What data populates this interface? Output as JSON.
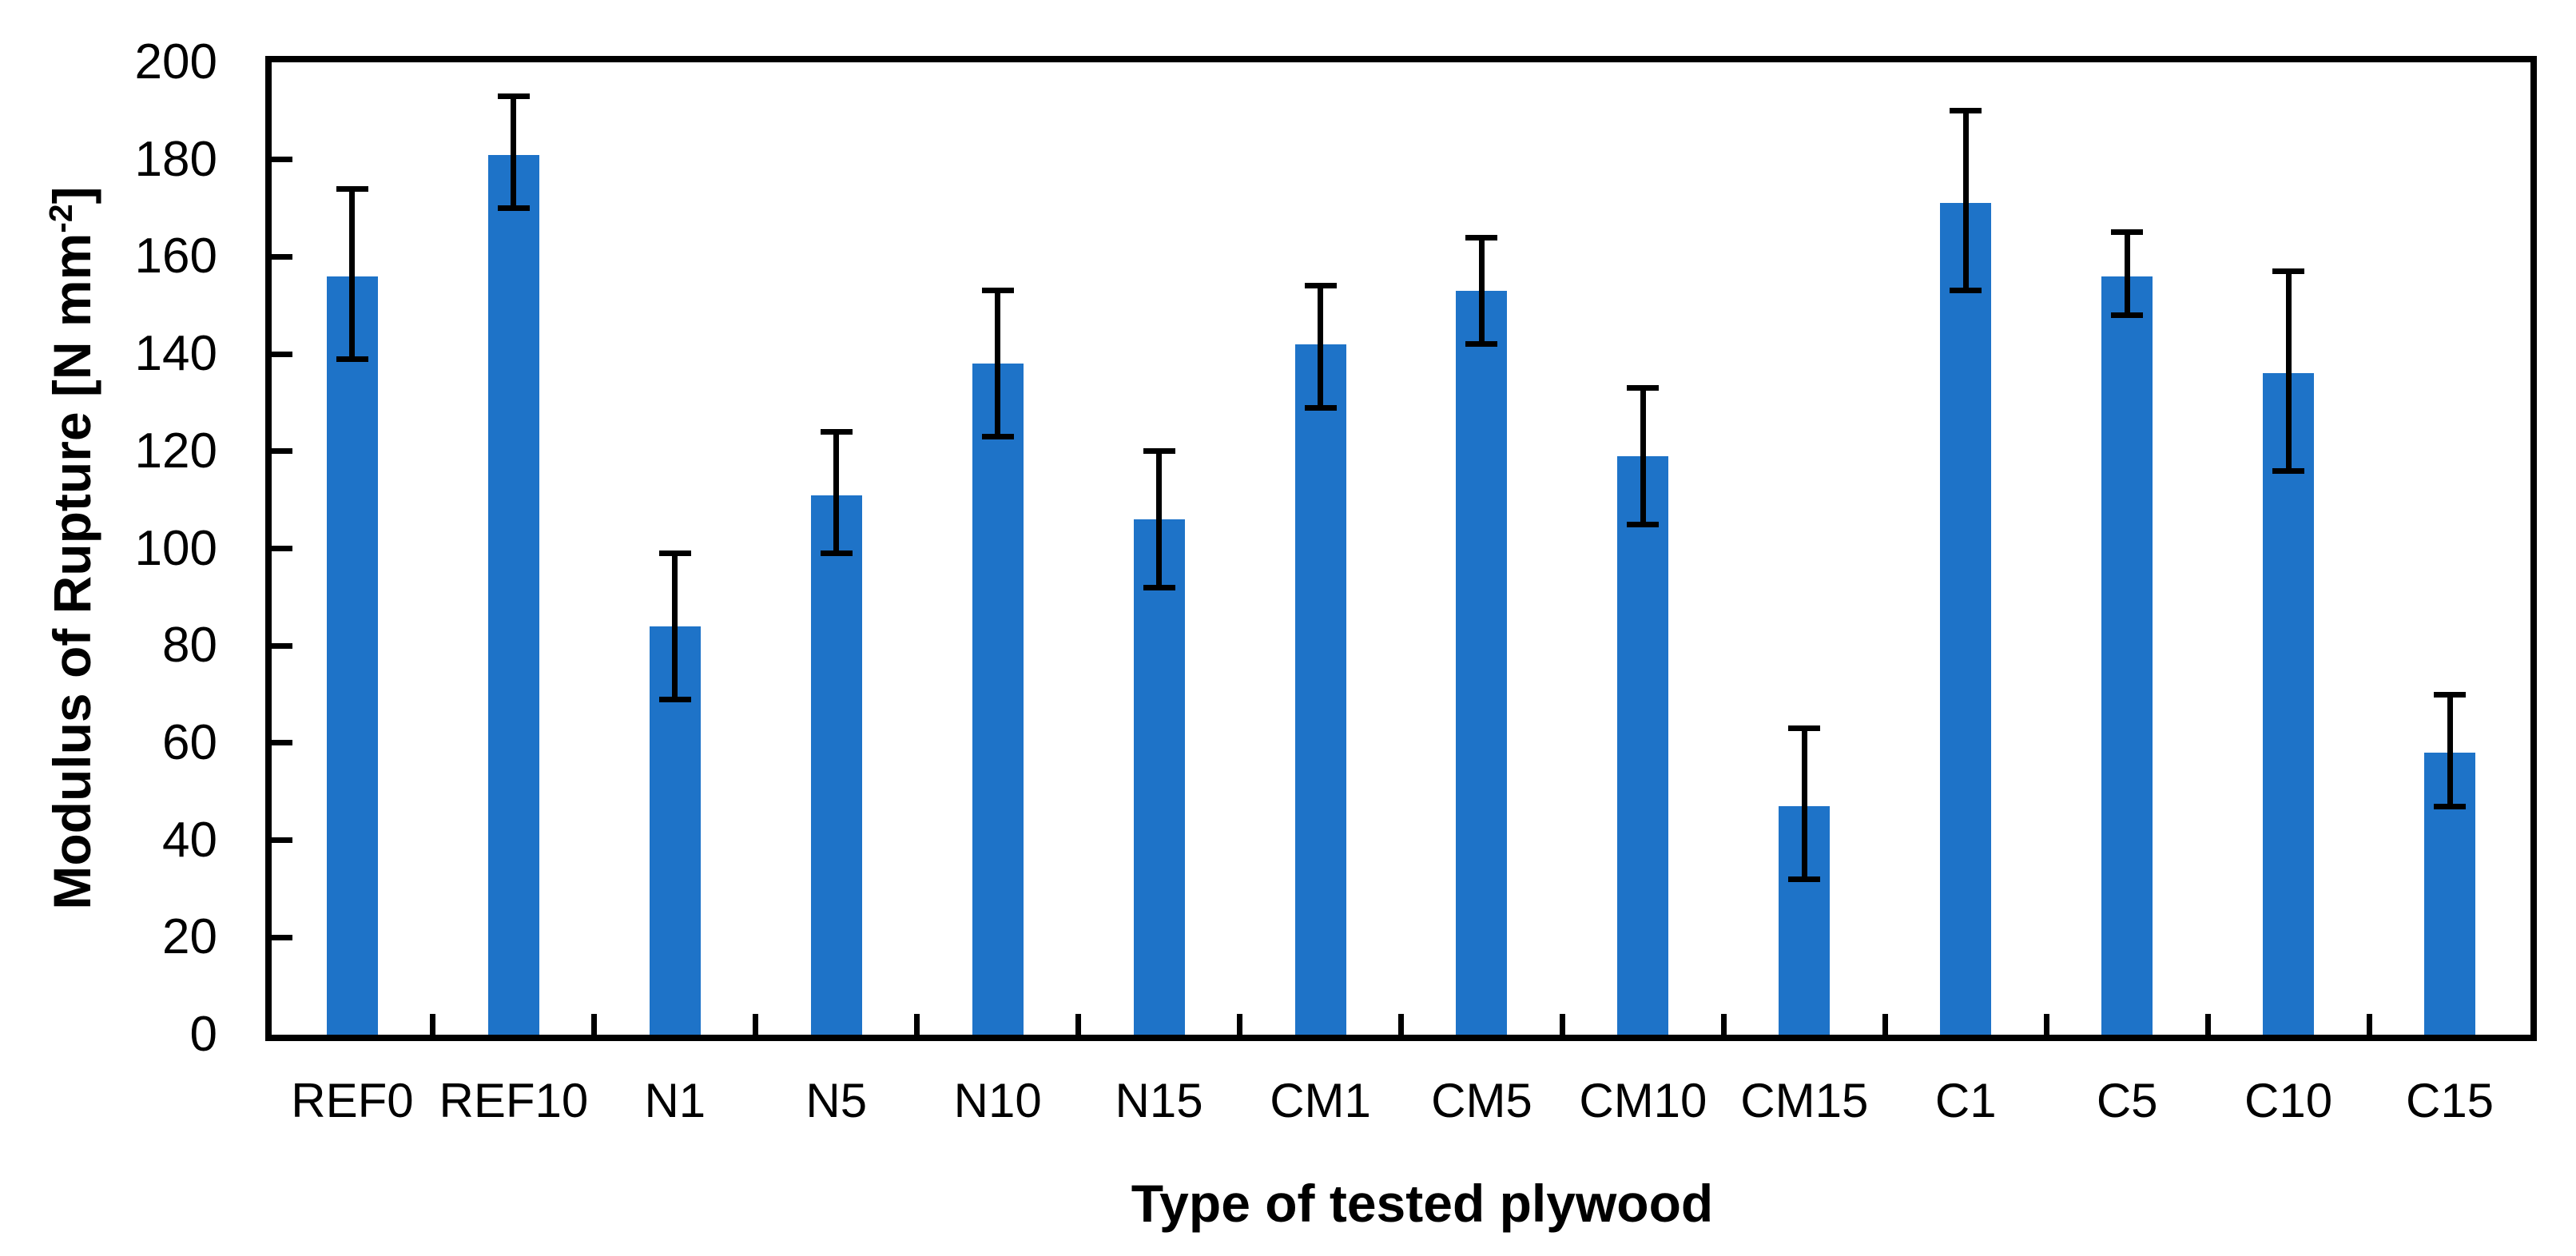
{
  "chart_data": {
    "type": "bar",
    "title": "",
    "xlabel": "Type of tested plywood",
    "ylabel_text": "Modulus of Rupture [N mm⁻²]",
    "ylabel_parts": {
      "prefix": "Modulus of Rupture [N mm",
      "superscript": "-2",
      "suffix": "]"
    },
    "categories": [
      "REF0",
      "REF10",
      "N1",
      "N5",
      "N10",
      "N15",
      "CM1",
      "CM5",
      "CM10",
      "CM15",
      "C1",
      "C5",
      "C10",
      "C15"
    ],
    "series": [
      {
        "name": "Modulus of Rupture",
        "values": [
          156,
          181,
          84,
          111,
          138,
          106,
          142,
          153,
          119,
          47,
          171,
          156,
          136,
          58
        ],
        "error_upper": [
          174,
          193,
          99,
          124,
          153,
          120,
          154,
          164,
          133,
          63,
          190,
          165,
          157,
          70
        ],
        "error_lower": [
          139,
          170,
          69,
          99,
          123,
          92,
          129,
          142,
          105,
          32,
          153,
          148,
          116,
          47
        ]
      }
    ],
    "ylim": [
      0,
      200
    ],
    "ytick_interval": 20,
    "ytick_labels": [
      "0",
      "20",
      "40",
      "60",
      "80",
      "100",
      "120",
      "140",
      "160",
      "180",
      "200"
    ],
    "grid": false,
    "legend": null,
    "bar_color": "#1E73C8",
    "error_bar_color": "#000000",
    "axis_color": "#000000",
    "plot_background": "#ffffff"
  }
}
